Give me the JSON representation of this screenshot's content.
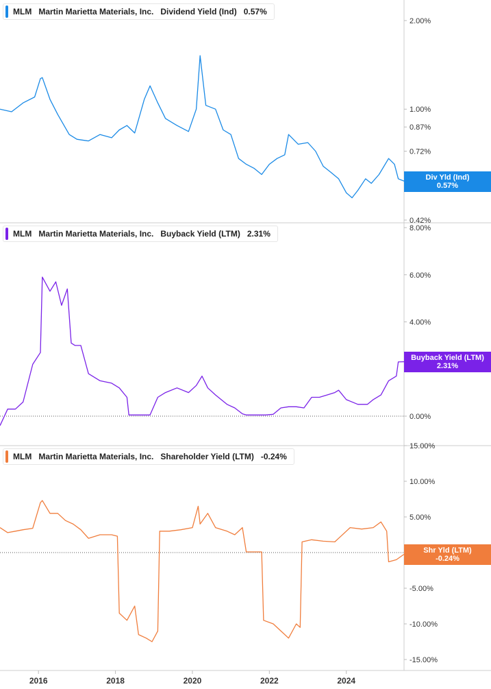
{
  "chart_data": [
    {
      "type": "line",
      "ticker": "MLM",
      "company": "Martin Marietta Materials, Inc.",
      "metric": "Dividend Yield (Ind)",
      "current_value": "0.57%",
      "flag_label": "Div Yld (Ind)",
      "color": "#1a8ae6",
      "scale": "log",
      "ylim": [
        0.42,
        2.25
      ],
      "y_ticks": [
        "2.00%",
        "1.00%",
        "0.87%",
        "0.72%",
        "0.57%",
        "0.42%"
      ],
      "y_tick_values": [
        2.0,
        1.0,
        0.87,
        0.72,
        0.57,
        0.42
      ],
      "x": [
        2015.0,
        2015.3,
        2015.6,
        2015.9,
        2016.05,
        2016.1,
        2016.3,
        2016.5,
        2016.8,
        2017.0,
        2017.3,
        2017.6,
        2017.9,
        2018.1,
        2018.3,
        2018.5,
        2018.75,
        2018.9,
        2019.1,
        2019.3,
        2019.6,
        2019.9,
        2020.1,
        2020.2,
        2020.35,
        2020.6,
        2020.8,
        2021.0,
        2021.2,
        2021.4,
        2021.6,
        2021.8,
        2022.0,
        2022.2,
        2022.4,
        2022.5,
        2022.75,
        2023.0,
        2023.2,
        2023.4,
        2023.6,
        2023.8,
        2024.0,
        2024.15,
        2024.3,
        2024.5,
        2024.65,
        2024.85,
        2025.1,
        2025.25,
        2025.35,
        2025.5
      ],
      "y": [
        1.0,
        0.98,
        1.05,
        1.1,
        1.27,
        1.28,
        1.08,
        0.96,
        0.82,
        0.79,
        0.78,
        0.82,
        0.8,
        0.85,
        0.88,
        0.83,
        1.08,
        1.2,
        1.05,
        0.93,
        0.88,
        0.84,
        1.0,
        1.52,
        1.03,
        1.0,
        0.85,
        0.82,
        0.68,
        0.65,
        0.63,
        0.6,
        0.65,
        0.68,
        0.7,
        0.82,
        0.76,
        0.77,
        0.72,
        0.64,
        0.61,
        0.58,
        0.52,
        0.5,
        0.53,
        0.58,
        0.56,
        0.6,
        0.68,
        0.65,
        0.58,
        0.57
      ]
    },
    {
      "type": "line",
      "ticker": "MLM",
      "company": "Martin Marietta Materials, Inc.",
      "metric": "Buyback Yield (LTM)",
      "current_value": "2.31%",
      "flag_label": "Buyback Yield (LTM)",
      "color": "#7a22e8",
      "ylim": [
        -0.5,
        8.0
      ],
      "y_ticks": [
        "8.00%",
        "6.00%",
        "4.00%",
        "2.00%",
        "0.00%"
      ],
      "y_tick_values": [
        8.0,
        6.0,
        4.0,
        2.0,
        0.0
      ],
      "x": [
        2015.0,
        2015.2,
        2015.4,
        2015.6,
        2015.85,
        2016.05,
        2016.1,
        2016.3,
        2016.45,
        2016.6,
        2016.75,
        2016.85,
        2016.95,
        2017.1,
        2017.3,
        2017.6,
        2017.9,
        2018.1,
        2018.3,
        2018.35,
        2018.6,
        2018.9,
        2019.1,
        2019.3,
        2019.6,
        2019.9,
        2020.1,
        2020.25,
        2020.4,
        2020.6,
        2020.9,
        2021.1,
        2021.3,
        2021.4,
        2021.6,
        2021.9,
        2022.1,
        2022.3,
        2022.5,
        2022.7,
        2022.9,
        2023.1,
        2023.3,
        2023.5,
        2023.7,
        2023.8,
        2024.0,
        2024.3,
        2024.55,
        2024.7,
        2024.9,
        2025.1,
        2025.3,
        2025.35,
        2025.5
      ],
      "y": [
        -0.4,
        0.3,
        0.3,
        0.6,
        2.2,
        2.7,
        5.9,
        5.3,
        5.7,
        4.7,
        5.4,
        3.1,
        3.0,
        3.0,
        1.8,
        1.5,
        1.4,
        1.2,
        0.8,
        0.05,
        0.05,
        0.05,
        0.8,
        1.0,
        1.2,
        1.0,
        1.3,
        1.7,
        1.2,
        0.9,
        0.5,
        0.35,
        0.1,
        0.05,
        0.05,
        0.05,
        0.08,
        0.35,
        0.4,
        0.4,
        0.35,
        0.8,
        0.8,
        0.9,
        1.0,
        1.1,
        0.7,
        0.5,
        0.5,
        0.7,
        0.9,
        1.5,
        1.7,
        2.3,
        2.31
      ]
    },
    {
      "type": "line",
      "ticker": "MLM",
      "company": "Martin Marietta Materials, Inc.",
      "metric": "Shareholder Yield (LTM)",
      "current_value": "-0.24%",
      "flag_label": "Shr Yld (LTM)",
      "color": "#f07d3c",
      "ylim": [
        -15.0,
        15.0
      ],
      "y_ticks": [
        "15.00%",
        "10.00%",
        "5.00%",
        "0.00%",
        "-5.00%",
        "-10.00%",
        "-15.00%"
      ],
      "y_tick_values": [
        15.0,
        10.0,
        5.0,
        0.0,
        -5.0,
        -10.0,
        -15.0
      ],
      "x": [
        2015.0,
        2015.2,
        2015.4,
        2015.6,
        2015.85,
        2016.05,
        2016.1,
        2016.3,
        2016.5,
        2016.7,
        2016.9,
        2017.1,
        2017.3,
        2017.6,
        2017.9,
        2018.05,
        2018.1,
        2018.3,
        2018.5,
        2018.6,
        2018.8,
        2018.95,
        2019.1,
        2019.15,
        2019.4,
        2019.7,
        2020.0,
        2020.15,
        2020.2,
        2020.4,
        2020.6,
        2020.9,
        2021.1,
        2021.3,
        2021.4,
        2021.6,
        2021.8,
        2021.85,
        2022.1,
        2022.3,
        2022.5,
        2022.7,
        2022.8,
        2022.85,
        2023.1,
        2023.4,
        2023.7,
        2023.8,
        2024.1,
        2024.4,
        2024.7,
        2024.9,
        2025.05,
        2025.1,
        2025.3,
        2025.5
      ],
      "y": [
        3.5,
        2.8,
        3.0,
        3.2,
        3.4,
        7.0,
        7.3,
        5.5,
        5.5,
        4.5,
        4.0,
        3.2,
        2.0,
        2.5,
        2.5,
        2.3,
        -8.5,
        -9.5,
        -7.5,
        -11.5,
        -12.0,
        -12.5,
        -11.0,
        3.0,
        3.0,
        3.2,
        3.5,
        6.5,
        4.0,
        5.5,
        3.5,
        3.0,
        2.5,
        3.5,
        0.1,
        0.1,
        0.1,
        -9.5,
        -10.0,
        -11.0,
        -12.0,
        -10.0,
        -10.5,
        1.5,
        1.8,
        1.6,
        1.5,
        2.0,
        3.5,
        3.3,
        3.5,
        4.3,
        3.0,
        -1.3,
        -1.0,
        -0.24
      ]
    }
  ],
  "x_axis": {
    "ticks": [
      "2016",
      "2018",
      "2020",
      "2022",
      "2024"
    ],
    "tick_values": [
      2016,
      2018,
      2020,
      2022,
      2024
    ],
    "xlim": [
      2015.0,
      2025.5
    ]
  }
}
